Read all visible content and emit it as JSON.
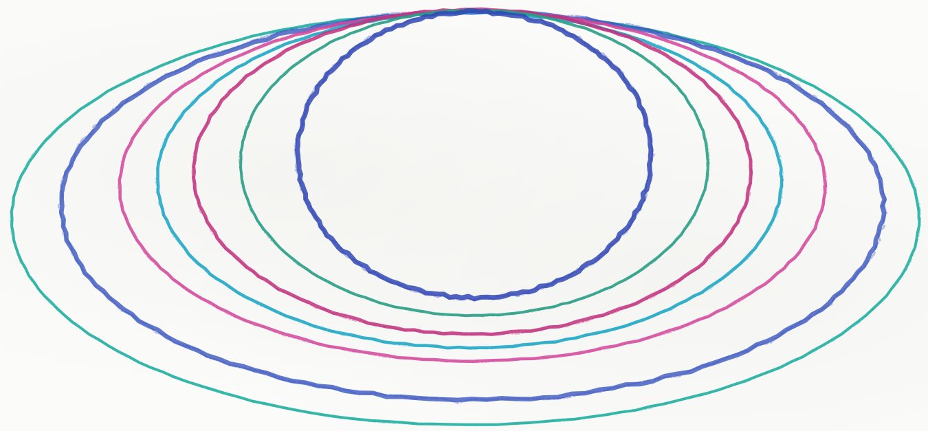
{
  "scene": {
    "background": "#fbfbfa",
    "rings": [
      {
        "name": "outer-teal-ring",
        "color": "#2bb3a5"
      },
      {
        "name": "blue-ring-1",
        "color": "#3a56c0"
      },
      {
        "name": "pink-ring-1",
        "color": "#d4479c"
      },
      {
        "name": "cyan-ring",
        "color": "#21a9c6"
      },
      {
        "name": "magenta-ring",
        "color": "#c2307e"
      },
      {
        "name": "green-ring",
        "color": "#2a9e86"
      },
      {
        "name": "inner-blue-ring",
        "color": "#3148b5"
      }
    ]
  }
}
